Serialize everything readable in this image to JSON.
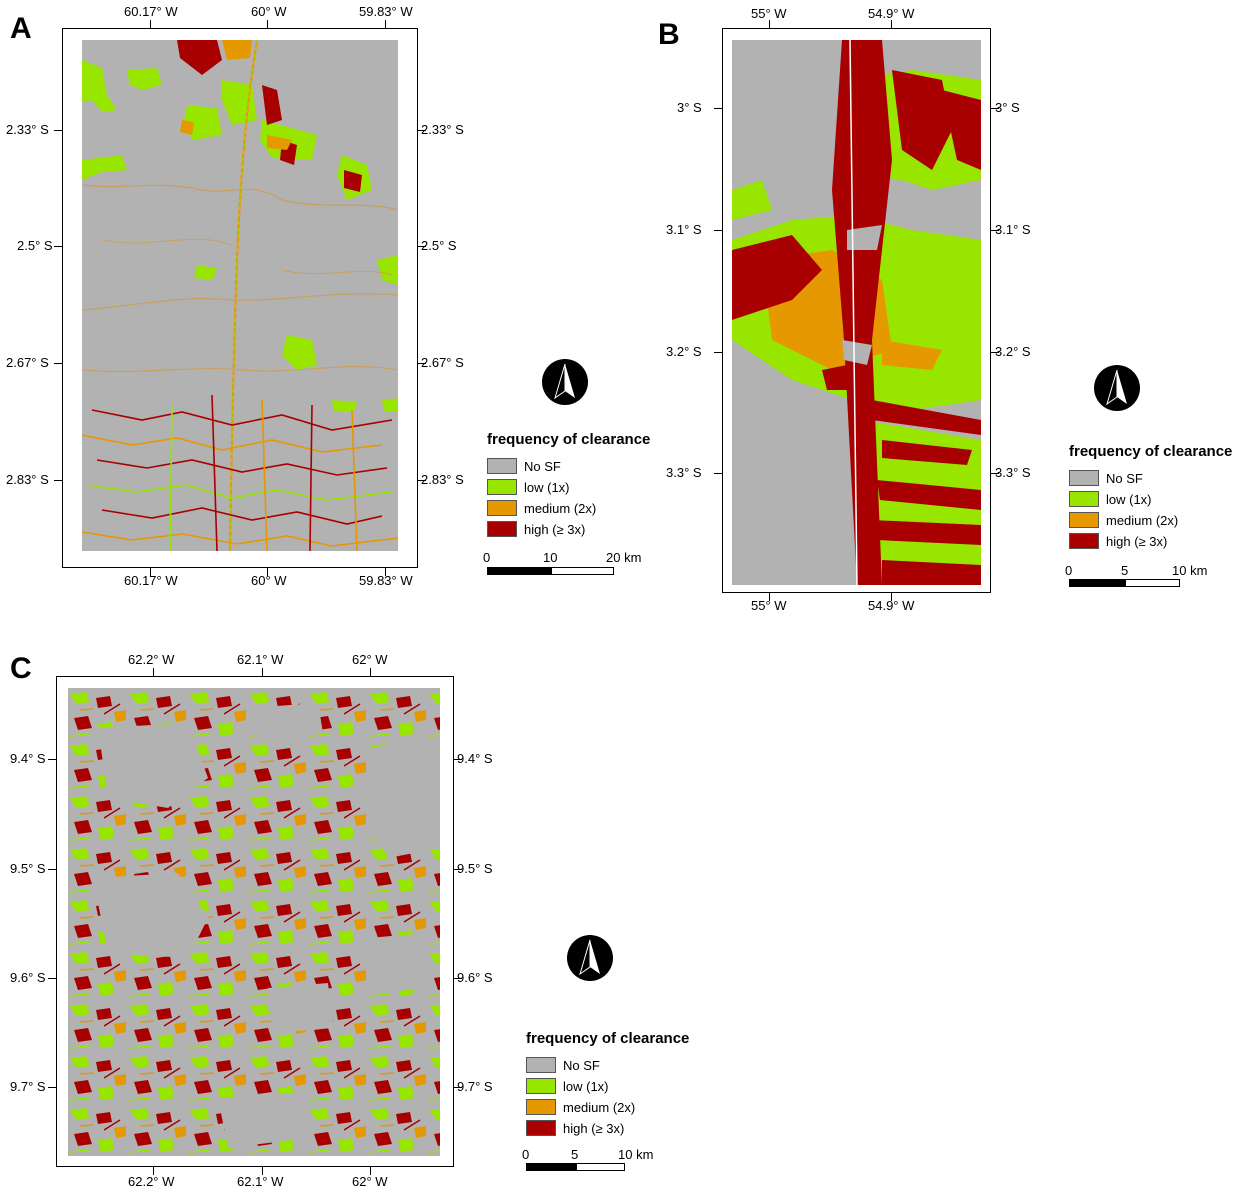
{
  "legend": {
    "title": "frequency of clearance",
    "items": [
      {
        "label": "No SF",
        "color": "#b2b2b2"
      },
      {
        "label": "low (1x)",
        "color": "#98e600"
      },
      {
        "label": "medium (2x)",
        "color": "#e69800"
      },
      {
        "label": "high (≥ 3x)",
        "color": "#a80000"
      }
    ]
  },
  "panels": {
    "A": {
      "letter": "A",
      "lon_labels": [
        "60.17° W",
        "60° W",
        "59.83° W"
      ],
      "lat_labels": [
        "2.33° S",
        "2.5° S",
        "2.67° S",
        "2.83° S"
      ],
      "scale": {
        "zero": "0",
        "mid": "10",
        "end": "20 km"
      }
    },
    "B": {
      "letter": "B",
      "lon_labels": [
        "55° W",
        "54.9° W"
      ],
      "lat_labels": [
        "3° S",
        "3.1° S",
        "3.2° S",
        "3.3° S"
      ],
      "scale": {
        "zero": "0",
        "mid": "5",
        "end": "10 km"
      }
    },
    "C": {
      "letter": "C",
      "lon_labels": [
        "62.2° W",
        "62.1° W",
        "62° W"
      ],
      "lat_labels": [
        "9.4° S",
        "9.5° S",
        "9.6° S",
        "9.7° S"
      ],
      "scale": {
        "zero": "0",
        "mid": "5",
        "end": "10 km"
      }
    }
  }
}
